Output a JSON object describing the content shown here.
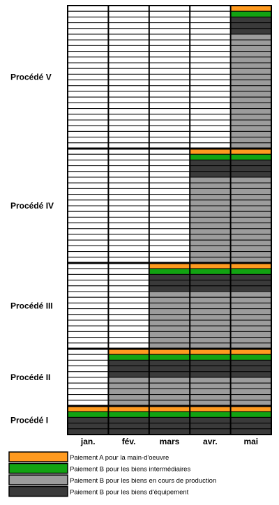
{
  "diagram": {
    "type": "stacked-block-schedule",
    "processes": [
      {
        "label": "Procédé V",
        "start_month": 4,
        "rows": 25,
        "block": [
          "A",
          "B_inter",
          "B_equip",
          "B_equip",
          "B_equip",
          "B_wip"
        ]
      },
      {
        "label": "Procédé IV",
        "start_month": 3,
        "rows": 20,
        "block": [
          "A",
          "B_inter",
          "B_equip",
          "B_equip",
          "B_equip",
          "B_wip"
        ]
      },
      {
        "label": "Procédé III",
        "start_month": 2,
        "rows": 15,
        "block": [
          "A",
          "B_inter",
          "B_equip",
          "B_equip",
          "B_equip",
          "B_wip"
        ]
      },
      {
        "label": "Procédé II",
        "start_month": 1,
        "rows": 10,
        "block": [
          "A",
          "B_inter",
          "B_equip",
          "B_equip",
          "B_equip",
          "B_wip"
        ]
      },
      {
        "label": "Procédé I",
        "start_month": 0,
        "rows": 5,
        "block": [
          "A",
          "B_inter",
          "B_equip",
          "B_equip",
          "B_equip"
        ]
      }
    ],
    "months": [
      "jan.",
      "fév.",
      "mars",
      "avr.",
      "mai"
    ]
  },
  "legend": [
    {
      "key": "A",
      "label": "Paiement A pour la main-d'oeuvre",
      "color": "#ff9a1f"
    },
    {
      "key": "B_inter",
      "label": "Paiement B pour les biens intermédiaires",
      "color": "#12a312"
    },
    {
      "key": "B_wip",
      "label": "Paiement B pour les biens en cours de production",
      "color": "#9c9c9c"
    },
    {
      "key": "B_equip",
      "label": "Paiement B pour les biens d'équipement",
      "color": "#3a3a3a"
    }
  ],
  "empty_color": "#ffffff"
}
